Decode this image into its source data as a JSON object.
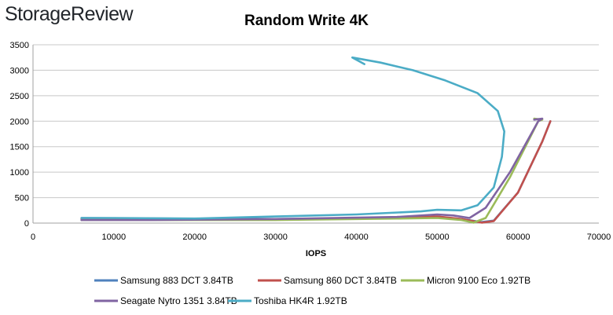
{
  "brand": "StorageReview",
  "chart_data": {
    "type": "line",
    "title": "Random Write 4K",
    "xlabel": "IOPS",
    "ylabel": "",
    "xlim": [
      0,
      70000
    ],
    "ylim": [
      0,
      3500
    ],
    "x_ticks": [
      "0",
      "10000",
      "20000",
      "30000",
      "40000",
      "50000",
      "60000",
      "70000"
    ],
    "y_ticks": [
      "0",
      "500",
      "1000",
      "1500",
      "2000",
      "2500",
      "3000",
      "3500"
    ],
    "grid": "horizontal",
    "legend_position": "bottom",
    "series": [
      {
        "name": "Samsung 883 DCT 3.84TB",
        "color": "#4f81bd",
        "points": [
          [
            6000,
            100
          ],
          [
            15000,
            90
          ],
          [
            30000,
            80
          ],
          [
            45000,
            100
          ],
          [
            50000,
            120
          ],
          [
            53000,
            80
          ],
          [
            55500,
            20
          ],
          [
            57000,
            50
          ],
          [
            60000,
            600
          ],
          [
            63000,
            1600
          ],
          [
            64000,
            2000
          ]
        ]
      },
      {
        "name": "Samsung 860 DCT 3.84TB",
        "color": "#c0504d",
        "points": [
          [
            6000,
            80
          ],
          [
            15000,
            75
          ],
          [
            30000,
            70
          ],
          [
            45000,
            100
          ],
          [
            50000,
            130
          ],
          [
            53000,
            80
          ],
          [
            55500,
            10
          ],
          [
            57000,
            40
          ],
          [
            60000,
            600
          ],
          [
            63000,
            1600
          ],
          [
            64000,
            2000
          ]
        ]
      },
      {
        "name": "Micron 9100 Eco 1.92TB",
        "color": "#9bbb59",
        "points": [
          [
            6000,
            60
          ],
          [
            15000,
            60
          ],
          [
            30000,
            60
          ],
          [
            45000,
            90
          ],
          [
            50000,
            100
          ],
          [
            53000,
            60
          ],
          [
            54500,
            10
          ],
          [
            56000,
            100
          ],
          [
            59000,
            900
          ],
          [
            62500,
            2000
          ],
          [
            63000,
            2030
          ],
          [
            62000,
            2050
          ]
        ]
      },
      {
        "name": "Seagate Nytro 1351 3.84TB",
        "color": "#8064a2",
        "points": [
          [
            6000,
            60
          ],
          [
            15000,
            60
          ],
          [
            30000,
            80
          ],
          [
            45000,
            120
          ],
          [
            50000,
            170
          ],
          [
            52000,
            150
          ],
          [
            54000,
            100
          ],
          [
            56000,
            300
          ],
          [
            59000,
            1000
          ],
          [
            62500,
            2000
          ],
          [
            63000,
            2050
          ],
          [
            62000,
            2030
          ]
        ]
      },
      {
        "name": "Toshiba HK4R 1.92TB",
        "color": "#4bacc6",
        "points": [
          [
            6000,
            100
          ],
          [
            10000,
            100
          ],
          [
            20000,
            90
          ],
          [
            30000,
            130
          ],
          [
            40000,
            170
          ],
          [
            48000,
            230
          ],
          [
            50000,
            260
          ],
          [
            53000,
            250
          ],
          [
            55000,
            350
          ],
          [
            57000,
            700
          ],
          [
            58000,
            1300
          ],
          [
            58300,
            1800
          ],
          [
            57500,
            2200
          ],
          [
            55000,
            2550
          ],
          [
            51000,
            2800
          ],
          [
            47000,
            3000
          ],
          [
            43000,
            3150
          ],
          [
            39500,
            3250
          ],
          [
            41000,
            3120
          ]
        ]
      }
    ]
  }
}
